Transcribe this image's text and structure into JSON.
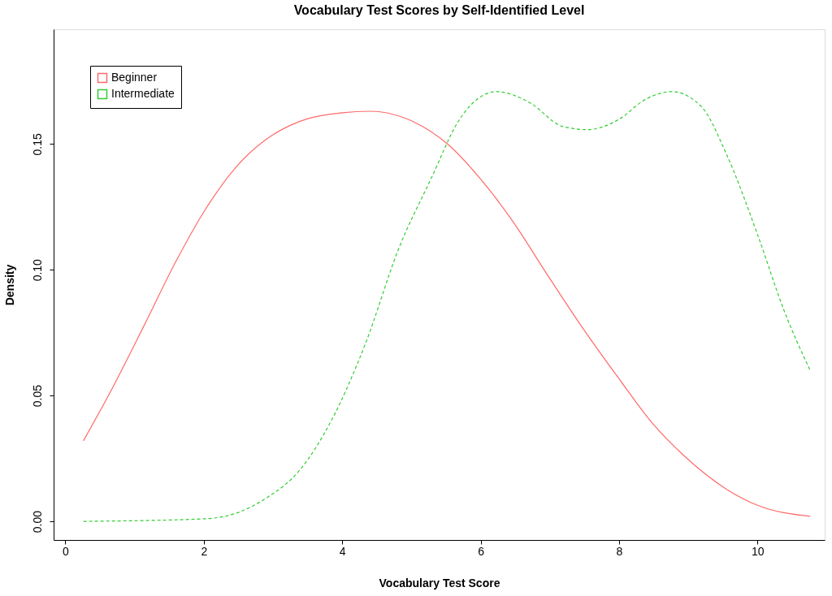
{
  "chart_data": {
    "type": "line",
    "title": "Vocabulary Test Scores by Self-Identified Level",
    "xlabel": "Vocabulary Test Score",
    "ylabel": "Density",
    "xlim": [
      -0.17,
      10.97
    ],
    "ylim": [
      -0.0074,
      0.1956
    ],
    "xticks": [
      0,
      2,
      4,
      6,
      8,
      10
    ],
    "yticks": [
      {
        "value": 0,
        "label": "0.00"
      },
      {
        "value": 0.05,
        "label": "0.05"
      },
      {
        "value": 0.1,
        "label": "0.10"
      },
      {
        "value": 0.15,
        "label": "0.15"
      }
    ],
    "grid": false,
    "legend": "top left",
    "marker": "none",
    "series": [
      {
        "name": "Beginner",
        "color": "#ff6a6a",
        "line_style": "solid",
        "x": [
          0.26,
          0.66,
          1.14,
          1.61,
          2.0,
          2.44,
          2.91,
          3.39,
          4.0,
          4.4,
          4.93,
          5.52,
          6.0,
          6.47,
          6.94,
          7.42,
          7.99,
          8.48,
          8.96,
          9.55,
          10.0,
          10.76
        ],
        "values": [
          0.032,
          0.052,
          0.078,
          0.104,
          0.123,
          0.14,
          0.152,
          0.159,
          0.1624,
          0.163,
          0.16,
          0.15,
          0.136,
          0.119,
          0.099,
          0.079,
          0.057,
          0.039,
          0.0255,
          0.0128,
          0.0064,
          0.002
        ]
      },
      {
        "name": "Intermediate",
        "color": "#33cc33",
        "line_style": "dashed",
        "x": [
          0.26,
          2.0,
          2.44,
          2.91,
          3.39,
          3.86,
          4.34,
          4.81,
          5.28,
          5.7,
          6.23,
          6.71,
          7.18,
          7.54,
          8.01,
          8.36,
          8.76,
          9.19,
          9.55,
          10.0,
          10.38,
          10.76
        ],
        "values": [
          0.0,
          0.001,
          0.003,
          0.0094,
          0.0205,
          0.041,
          0.071,
          0.108,
          0.136,
          0.16,
          0.1708,
          0.1664,
          0.157,
          0.1557,
          0.16,
          0.1674,
          0.1708,
          0.1648,
          0.146,
          0.114,
          0.084,
          0.06
        ]
      }
    ]
  }
}
